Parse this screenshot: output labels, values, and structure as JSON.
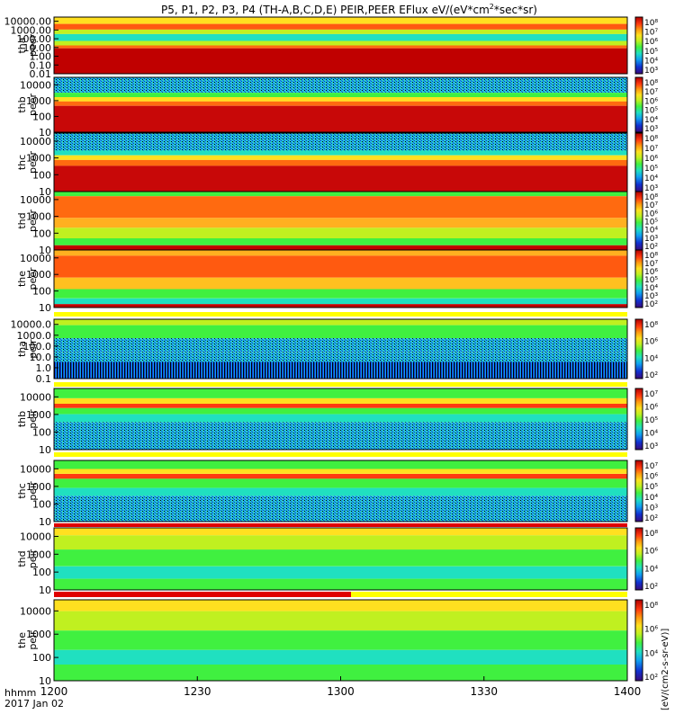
{
  "title": "P5, P1, P2, P3, P4 (TH-A,B,C,D,E) PEIR,PEER EFlux eV/(eV*cm",
  "title_sup": "2",
  "title_end": "*sec*sr)",
  "footer": {
    "time_label": "hhmm",
    "date_label": "2017 Jan 02"
  },
  "x_axis": {
    "ticks": [
      "1200",
      "1230",
      "1300",
      "1330",
      "1400"
    ],
    "range_minutes": [
      0,
      120
    ]
  },
  "colorbar_label": "[eV/(cm2-s-sr-eV)]",
  "colors": {
    "spectrogram_scale": [
      "#3a0a7a",
      "#1030d0",
      "#10a0f0",
      "#20e0c0",
      "#40f040",
      "#c0f020",
      "#ffe020",
      "#ff9a10",
      "#ff3a10",
      "#d01010",
      "#b00000"
    ],
    "flag_bar_red": "#e00000",
    "flag_bar_yellow": "#ffff00"
  },
  "chart_data": {
    "type": "heatmap",
    "x_unit": "hhmm UT",
    "panels": [
      {
        "probe": "tha",
        "instrument": "peer",
        "y_ticks": [
          "10000.00",
          "1000.00",
          "100.00",
          "10.00",
          "1.00",
          "0.10",
          "0.01"
        ],
        "y_log_range": [
          0.01,
          30000
        ],
        "colorbar_ticks": [
          "10⁸",
          "10⁷",
          "10⁶",
          "10⁵",
          "10⁴",
          "10³"
        ]
      },
      {
        "probe": "thb",
        "instrument": "peer",
        "y_ticks": [
          "10000",
          "1000",
          "100",
          "10"
        ],
        "y_log_range": [
          10,
          30000
        ],
        "colorbar_ticks": [
          "10⁸",
          "10⁷",
          "10⁶",
          "10⁵",
          "10⁴",
          "10³"
        ]
      },
      {
        "probe": "thc",
        "instrument": "peer",
        "y_ticks": [
          "10000",
          "1000",
          "100",
          "10"
        ],
        "y_log_range": [
          10,
          30000
        ],
        "colorbar_ticks": [
          "10⁸",
          "10⁷",
          "10⁶",
          "10⁵",
          "10⁴",
          "10³"
        ]
      },
      {
        "probe": "thd",
        "instrument": "peer",
        "y_ticks": [
          "10000",
          "1000",
          "100",
          "10"
        ],
        "y_log_range": [
          10,
          30000
        ],
        "colorbar_ticks": [
          "10⁸",
          "10⁷",
          "10⁶",
          "10⁵",
          "10⁴",
          "10³",
          "10²"
        ]
      },
      {
        "probe": "the",
        "instrument": "peer",
        "y_ticks": [
          "10000",
          "1000",
          "100",
          "10"
        ],
        "y_log_range": [
          10,
          30000
        ],
        "colorbar_ticks": [
          "10⁸",
          "10⁷",
          "10⁶",
          "10⁵",
          "10⁴",
          "10³",
          "10²"
        ]
      },
      {
        "probe": "tha",
        "instrument": "peir",
        "y_ticks": [
          "10000.0",
          "1000.0",
          "100.0",
          "10.0",
          "1.0",
          "0.1"
        ],
        "y_log_range": [
          0.1,
          30000
        ],
        "colorbar_ticks": [
          "10⁸",
          "10⁶",
          "10⁴",
          "10²"
        ]
      },
      {
        "probe": "thb",
        "instrument": "peir",
        "y_ticks": [
          "10000",
          "1000",
          "100",
          "10"
        ],
        "y_log_range": [
          10,
          30000
        ],
        "colorbar_ticks": [
          "10⁷",
          "10⁶",
          "10⁵",
          "10⁴",
          "10³"
        ]
      },
      {
        "probe": "thc",
        "instrument": "peir",
        "y_ticks": [
          "10000",
          "1000",
          "100",
          "10"
        ],
        "y_log_range": [
          10,
          30000
        ],
        "colorbar_ticks": [
          "10⁷",
          "10⁶",
          "10⁵",
          "10⁴",
          "10³",
          "10²"
        ]
      },
      {
        "probe": "thd",
        "instrument": "peir",
        "y_ticks": [
          "10000",
          "1000",
          "100",
          "10"
        ],
        "y_log_range": [
          10,
          30000
        ],
        "colorbar_ticks": [
          "10⁸",
          "10⁶",
          "10⁴",
          "10²"
        ]
      },
      {
        "probe": "the",
        "instrument": "peir",
        "y_ticks": [
          "10000",
          "1000",
          "100",
          "10"
        ],
        "y_log_range": [
          10,
          30000
        ],
        "colorbar_ticks": [
          "10⁸",
          "10⁶",
          "10⁴",
          "10²"
        ]
      }
    ]
  }
}
